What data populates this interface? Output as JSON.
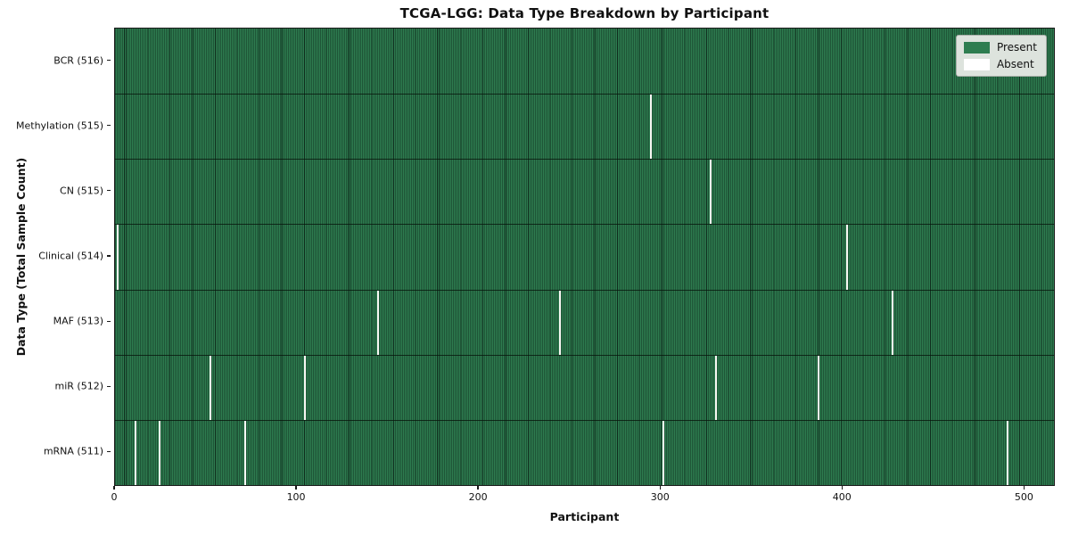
{
  "figure": {
    "title": "TCGA-LGG: Data Type Breakdown by Participant",
    "xlabel": "Participant",
    "ylabel": "Data Type (Total Sample Count)"
  },
  "colors": {
    "present": "#2e7d50",
    "present_edge": "#0f2c1d",
    "absent": "#f7f7f3",
    "legend_bg": "#dde3dd",
    "spine": "#1a1a1a"
  },
  "chart_data": {
    "type": "heatmap",
    "title": "TCGA-LGG: Data Type Breakdown by Participant",
    "xlabel": "Participant",
    "ylabel": "Data Type (Total Sample Count)",
    "x_ticks": [
      0,
      100,
      200,
      300,
      400,
      500
    ],
    "x_range": [
      0,
      516
    ],
    "n_participants": 516,
    "grid": false,
    "legend_position": "upper right",
    "legend": [
      {
        "label": "Present",
        "color": "#2e7d50"
      },
      {
        "label": "Absent",
        "color": "#ffffff"
      }
    ],
    "rows": [
      {
        "label": "BCR (516)",
        "data_type": "BCR",
        "total": 516,
        "absent_participants": []
      },
      {
        "label": "Methylation (515)",
        "data_type": "Methylation",
        "total": 515,
        "absent_participants": [
          294
        ]
      },
      {
        "label": "CN (515)",
        "data_type": "CN",
        "total": 515,
        "absent_participants": [
          327
        ]
      },
      {
        "label": "Clinical (514)",
        "data_type": "Clinical",
        "total": 514,
        "absent_participants": [
          1,
          402
        ]
      },
      {
        "label": "MAF (513)",
        "data_type": "MAF",
        "total": 513,
        "absent_participants": [
          144,
          244,
          427
        ]
      },
      {
        "label": "miR (512)",
        "data_type": "miR",
        "total": 512,
        "absent_participants": [
          52,
          104,
          330,
          386
        ]
      },
      {
        "label": "mRNA (511)",
        "data_type": "mRNA",
        "total": 511,
        "absent_participants": [
          11,
          24,
          71,
          301,
          490
        ]
      }
    ]
  }
}
